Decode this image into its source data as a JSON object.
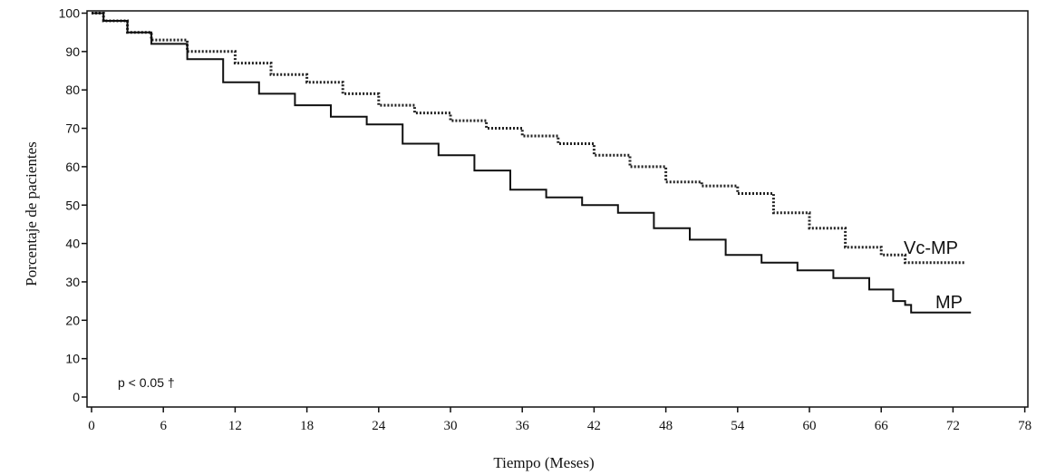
{
  "chart_data": {
    "type": "line",
    "xlabel": "Tiempo (Meses)",
    "ylabel": "Porcentaje de pacientes",
    "xlim": [
      0,
      78
    ],
    "ylim": [
      0,
      100
    ],
    "x_ticks": [
      0,
      6,
      12,
      18,
      24,
      30,
      36,
      42,
      48,
      54,
      60,
      66,
      72,
      78
    ],
    "y_ticks": [
      0,
      10,
      20,
      30,
      40,
      50,
      60,
      70,
      80,
      90,
      100
    ],
    "annotation": "p < 0.05 †",
    "grid": false,
    "series": [
      {
        "name": "Vc-MP",
        "style": "dotted",
        "color": "#222222",
        "x": [
          0,
          1,
          3,
          5,
          8,
          12,
          15,
          18,
          21,
          24,
          27,
          30,
          33,
          36,
          39,
          42,
          45,
          48,
          51,
          54,
          57,
          60,
          63,
          66,
          68,
          73
        ],
        "y": [
          100,
          98,
          95,
          93,
          90,
          87,
          84,
          82,
          79,
          76,
          74,
          72,
          70,
          68,
          66,
          63,
          60,
          56,
          55,
          53,
          48,
          44,
          39,
          37,
          35,
          35
        ]
      },
      {
        "name": "MP",
        "style": "solid",
        "color": "#111111",
        "x": [
          0,
          1,
          3,
          5,
          8,
          11,
          14,
          17,
          20,
          23,
          26,
          29,
          32,
          35,
          38,
          41,
          44,
          47,
          50,
          53,
          56,
          59,
          62,
          65,
          67,
          68,
          68.5,
          73.5
        ],
        "y": [
          100,
          98,
          95,
          92,
          88,
          82,
          79,
          76,
          73,
          71,
          66,
          63,
          59,
          54,
          52,
          50,
          48,
          44,
          41,
          37,
          35,
          33,
          31,
          28,
          25,
          24,
          22,
          22
        ]
      }
    ]
  }
}
